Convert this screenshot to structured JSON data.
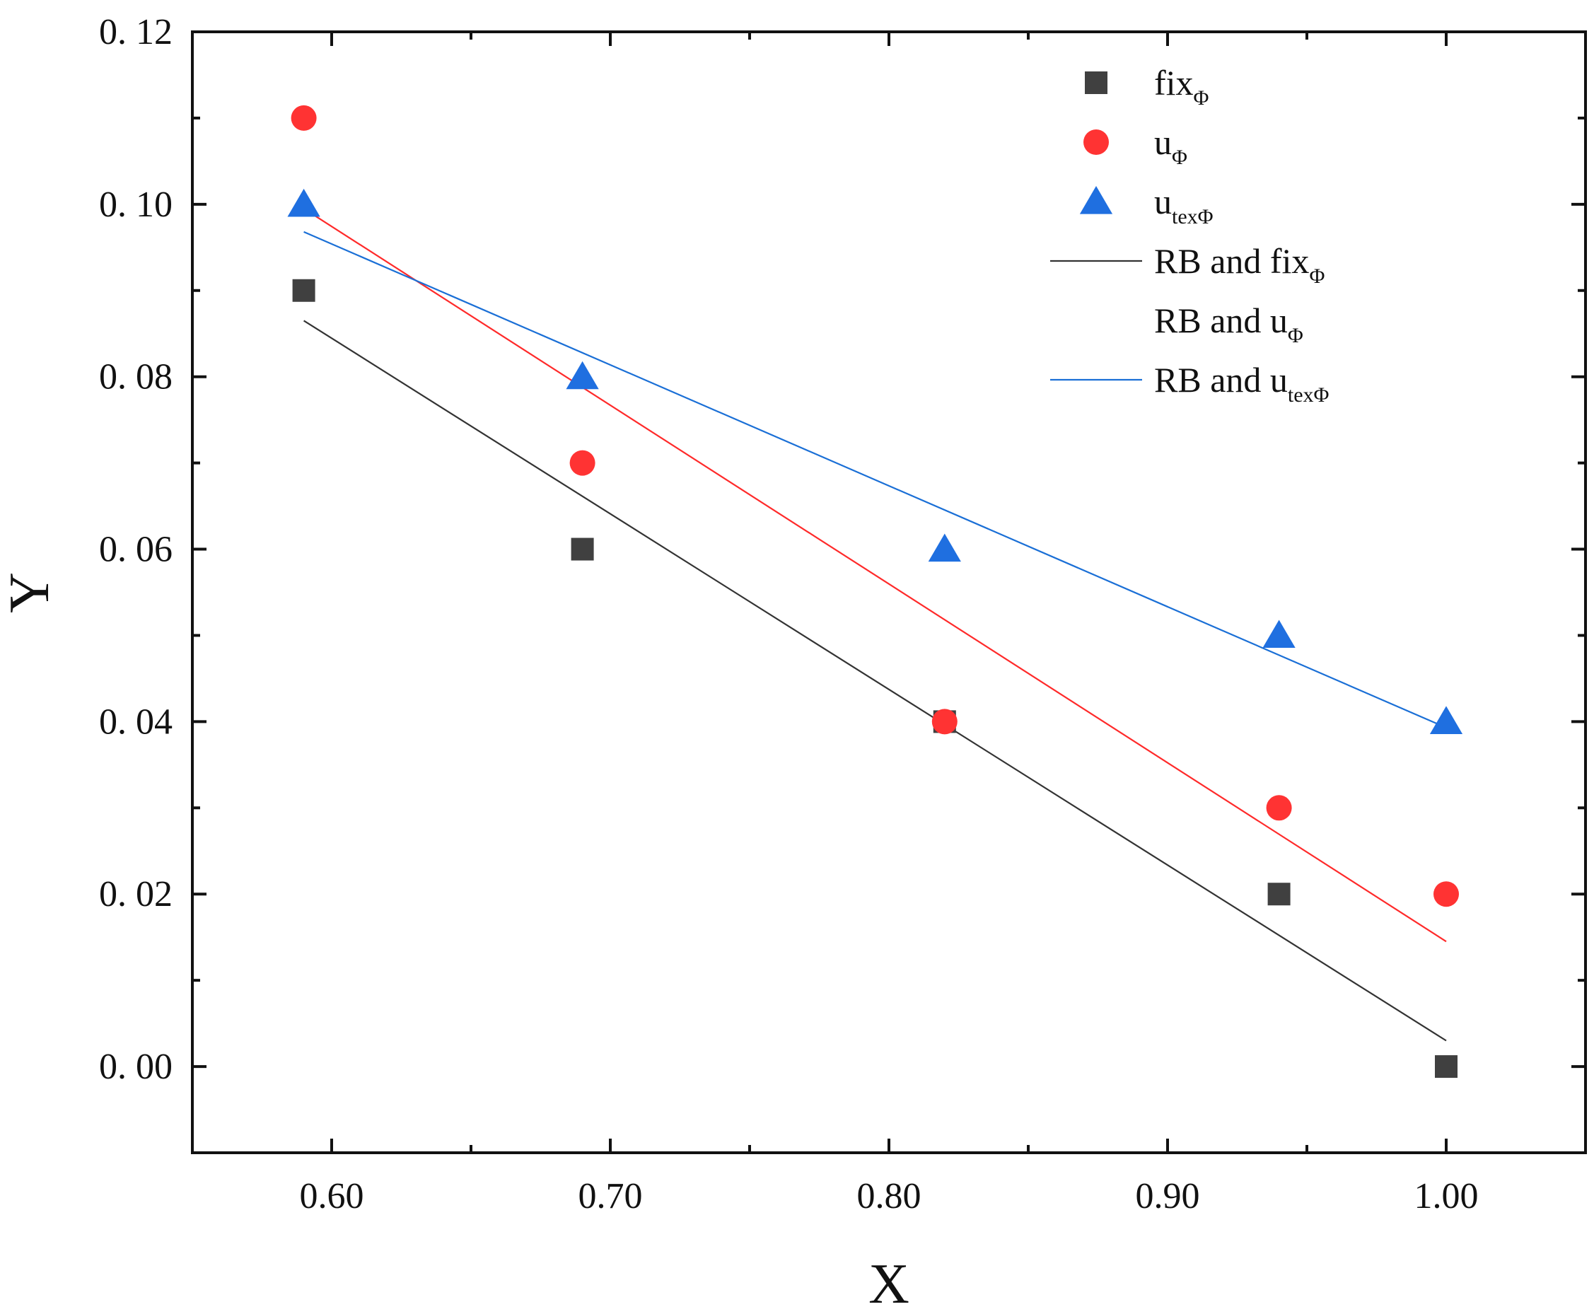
{
  "chart_data": {
    "type": "scatter",
    "title": "",
    "xlabel": "X",
    "ylabel": "Y",
    "xlim": [
      0.55,
      1.05
    ],
    "ylim": [
      -0.01,
      0.12
    ],
    "xticks": [
      0.6,
      0.7,
      0.8,
      0.9,
      1.0
    ],
    "xtick_labels": [
      "0.60",
      "0.70",
      "0.80",
      "0.90",
      "1.00"
    ],
    "yticks": [
      0.0,
      0.02,
      0.04,
      0.06,
      0.08,
      0.1,
      0.12
    ],
    "ytick_labels": [
      "0. 00",
      "0. 02",
      "0. 04",
      "0. 06",
      "0. 08",
      "0. 10",
      "0. 12"
    ],
    "grid": false,
    "legend_position": "top-right",
    "series": [
      {
        "name": "fix",
        "sub": "Φ",
        "marker": "square",
        "color": "#404040",
        "x": [
          0.59,
          0.69,
          0.82,
          0.94,
          1.0
        ],
        "y": [
          0.09,
          0.06,
          0.04,
          0.02,
          0.0
        ]
      },
      {
        "name": "u",
        "sub": "Φ",
        "marker": "circle",
        "color": "#ff3333",
        "x": [
          0.59,
          0.69,
          0.82,
          0.94,
          1.0
        ],
        "y": [
          0.11,
          0.07,
          0.04,
          0.03,
          0.02
        ]
      },
      {
        "name": "u",
        "sub": "texΦ",
        "marker": "triangle",
        "color": "#1f6fe0",
        "x": [
          0.59,
          0.69,
          0.82,
          0.94,
          1.0
        ],
        "y": [
          0.1,
          0.08,
          0.06,
          0.05,
          0.04
        ]
      }
    ],
    "fit_lines": [
      {
        "name": "RB and fix",
        "sub": "Φ",
        "color": "#333333",
        "show_in_legend": true,
        "x": [
          0.59,
          1.0
        ],
        "y": [
          0.0865,
          0.003
        ]
      },
      {
        "name": "RB and u",
        "sub": "Φ",
        "color": "#ff2a2a",
        "show_in_legend": false,
        "x": [
          0.59,
          1.0
        ],
        "y": [
          0.0995,
          0.0145
        ]
      },
      {
        "name": "RB and u",
        "sub": "texΦ",
        "color": "#1a6fd6",
        "show_in_legend": true,
        "x": [
          0.59,
          1.0
        ],
        "y": [
          0.0968,
          0.0393
        ]
      }
    ]
  }
}
